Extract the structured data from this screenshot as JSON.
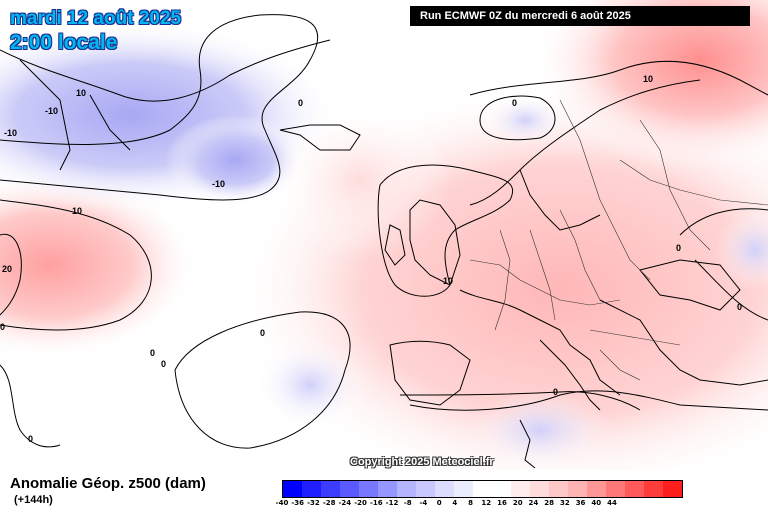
{
  "header": {
    "date": "mardi 12 août 2025",
    "time": "2:00 locale",
    "run": "Run ECMWF 0Z du mercredi 6 août 2025"
  },
  "footer": {
    "field": "Anomalie Géop. z500 (dam)",
    "lead": "(+144h)",
    "copyright": "Copyright 2025 Meteociel.fr"
  },
  "contour_labels": [
    "10",
    "-10",
    "-10",
    "-10",
    "10",
    "20",
    "0",
    "0",
    "0",
    "0",
    "0",
    "10",
    "10",
    "0",
    "0",
    "0",
    "0",
    "0"
  ],
  "scale": {
    "labels": [
      "-40",
      "-36",
      "-32",
      "-28",
      "-24",
      "-20",
      "-16",
      "-12",
      "-8",
      "-4",
      "0",
      "4",
      "8",
      "12",
      "16",
      "20",
      "24",
      "28",
      "32",
      "36",
      "40",
      "44"
    ],
    "colors": [
      "#0000ff",
      "#1e1eff",
      "#3c3cff",
      "#5a5aff",
      "#7878ff",
      "#9696ff",
      "#b4b4ff",
      "#c8c8ff",
      "#dcdcff",
      "#ececff",
      "#ffffff",
      "#ffffff",
      "#ffecec",
      "#ffdcdc",
      "#ffc8c8",
      "#ffb4b4",
      "#ff9696",
      "#ff7878",
      "#ff5a5a",
      "#ff3c3c",
      "#ff1e1e"
    ]
  }
}
